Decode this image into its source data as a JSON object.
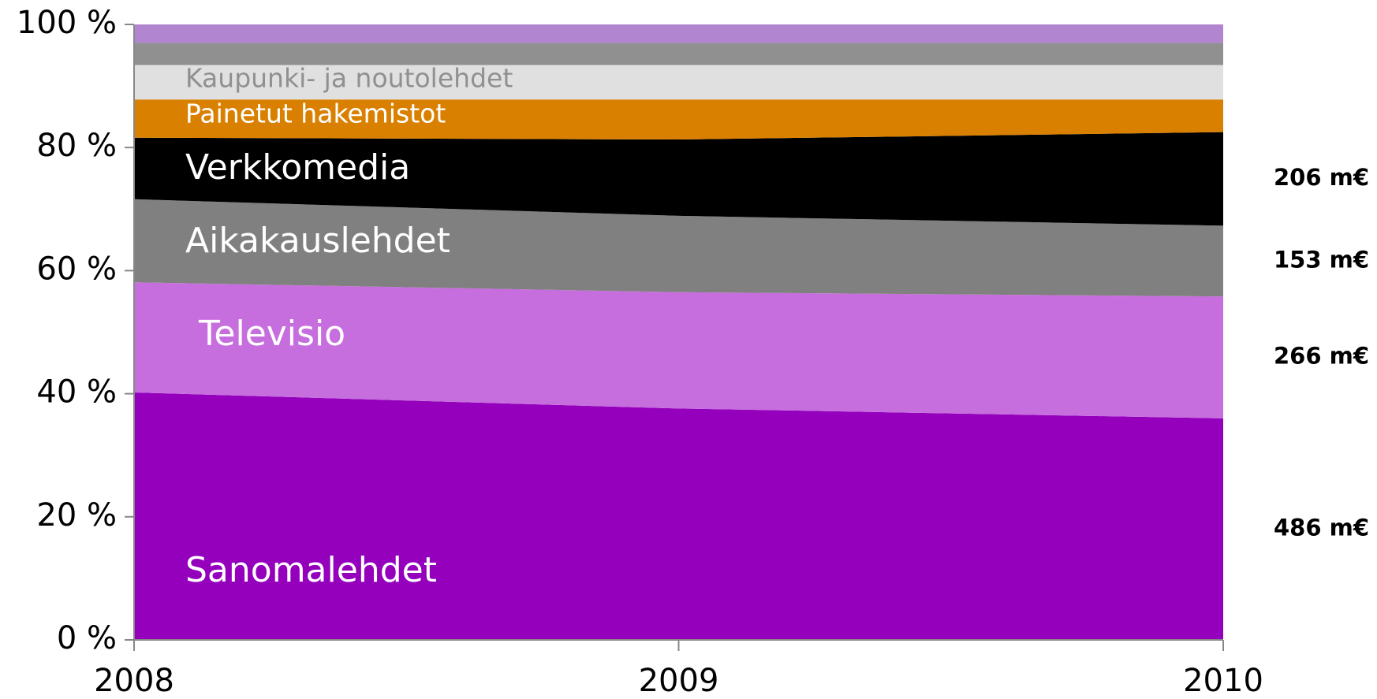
{
  "chart_data": {
    "type": "stacked_area",
    "x": [
      2008,
      2009,
      2010
    ],
    "xlim": [
      2008,
      2010
    ],
    "xticks": [
      2008,
      2009,
      2010
    ],
    "ylim": [
      0,
      100
    ],
    "yticks": [
      {
        "value": 0,
        "label": "0 %"
      },
      {
        "value": 20,
        "label": "20 %"
      },
      {
        "value": 40,
        "label": "40 %"
      },
      {
        "value": 60,
        "label": "60 %"
      },
      {
        "value": 80,
        "label": "80 %"
      },
      {
        "value": 100,
        "label": "100 %"
      }
    ],
    "series": [
      {
        "name": "Sanomalehdet",
        "color": "#9400bc",
        "values": [
          40.2,
          37.6,
          36.0
        ],
        "end_label": "486 m€"
      },
      {
        "name": "Televisio",
        "color": "#c76ede",
        "values": [
          17.9,
          18.9,
          19.8
        ],
        "end_label": "266 m€"
      },
      {
        "name": "Aikakauslehdet",
        "color": "#808080",
        "values": [
          13.5,
          12.4,
          11.5
        ],
        "end_label": "153 m€"
      },
      {
        "name": "Verkkomedia",
        "color": "#000000",
        "values": [
          10.0,
          12.4,
          15.2
        ],
        "end_label": "206 m€"
      },
      {
        "name": "Painetut hakemistot",
        "color": "#d98000",
        "values": [
          6.2,
          6.5,
          5.3
        ]
      },
      {
        "name": "Kaupunki- ja noutolehdet",
        "color": "#e0e0e0",
        "values": [
          5.6,
          5.6,
          5.6
        ]
      },
      {
        "color": "#909090",
        "values": [
          3.6,
          3.6,
          3.6
        ]
      },
      {
        "color": "#b285d0",
        "values": [
          3.0,
          3.0,
          3.0
        ]
      }
    ]
  }
}
